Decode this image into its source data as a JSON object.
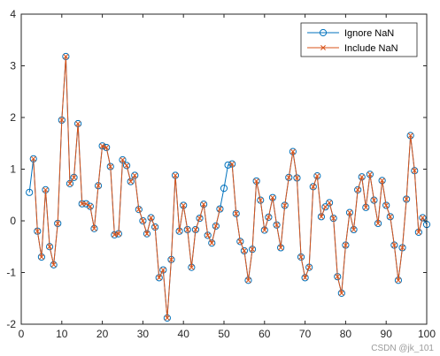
{
  "chart_data": {
    "type": "line",
    "xlim": [
      0,
      100
    ],
    "ylim": [
      -2,
      4
    ],
    "x_ticks": [
      0,
      10,
      20,
      30,
      40,
      50,
      60,
      70,
      80,
      90,
      100
    ],
    "x_tick_labels": [
      "0",
      "10",
      "20",
      "30",
      "40",
      "50",
      "60",
      "70",
      "80",
      "90",
      "100"
    ],
    "y_ticks": [
      -2,
      -1,
      0,
      1,
      2,
      3,
      4
    ],
    "y_tick_labels": [
      "-2",
      "-1",
      "0",
      "1",
      "2",
      "3",
      "4"
    ],
    "grid": false,
    "legend_position": "top-right",
    "x": [
      2,
      3,
      4,
      5,
      6,
      7,
      8,
      9,
      10,
      11,
      12,
      13,
      14,
      15,
      16,
      17,
      18,
      19,
      20,
      21,
      22,
      23,
      24,
      25,
      26,
      27,
      28,
      29,
      30,
      31,
      32,
      33,
      34,
      35,
      36,
      37,
      38,
      39,
      40,
      41,
      42,
      43,
      44,
      45,
      46,
      47,
      48,
      49,
      50,
      51,
      52,
      53,
      54,
      55,
      56,
      57,
      58,
      59,
      60,
      61,
      62,
      63,
      64,
      65,
      66,
      67,
      68,
      69,
      70,
      71,
      72,
      73,
      74,
      75,
      76,
      77,
      78,
      79,
      80,
      81,
      82,
      83,
      84,
      85,
      86,
      87,
      88,
      89,
      90,
      91,
      92,
      93,
      94,
      95,
      96,
      97,
      98,
      99,
      100
    ],
    "series": [
      {
        "name": "Ignore NaN",
        "color": "#0072BD",
        "marker": "circle",
        "values": [
          0.55,
          1.2,
          -0.2,
          -0.7,
          0.6,
          -0.5,
          -0.85,
          -0.05,
          1.95,
          3.18,
          0.72,
          0.84,
          1.88,
          0.33,
          0.33,
          0.28,
          -0.15,
          0.68,
          1.45,
          1.42,
          1.05,
          -0.27,
          -0.25,
          1.18,
          1.07,
          0.76,
          0.88,
          0.22,
          0.0,
          -0.25,
          0.06,
          -0.12,
          -1.1,
          -0.95,
          -1.88,
          -0.75,
          0.88,
          -0.2,
          0.3,
          -0.17,
          -0.9,
          -0.17,
          0.05,
          0.32,
          -0.28,
          -0.43,
          -0.1,
          0.23,
          0.63,
          1.08,
          1.1,
          0.14,
          -0.4,
          -0.58,
          -1.15,
          -0.55,
          0.77,
          0.4,
          -0.18,
          0.07,
          0.45,
          -0.08,
          -0.52,
          0.3,
          0.84,
          1.34,
          0.83,
          -0.7,
          -1.1,
          -0.9,
          0.66,
          0.87,
          0.08,
          0.27,
          0.35,
          0.05,
          -1.08,
          -1.4,
          -0.47,
          0.16,
          -0.17,
          0.6,
          0.85,
          0.26,
          0.9,
          0.4,
          -0.05,
          0.78,
          0.3,
          0.08,
          -0.47,
          -1.15,
          -0.52,
          0.42,
          1.65,
          0.97,
          -0.22,
          0.06,
          -0.07
        ]
      },
      {
        "name": "Include NaN",
        "color": "#D95319",
        "marker": "x",
        "values": [
          null,
          1.2,
          -0.2,
          -0.7,
          0.6,
          -0.5,
          -0.85,
          -0.05,
          1.95,
          3.18,
          0.72,
          0.84,
          1.88,
          0.33,
          0.33,
          0.28,
          -0.15,
          0.68,
          1.45,
          1.42,
          1.05,
          -0.27,
          -0.25,
          1.18,
          1.07,
          0.76,
          0.88,
          0.22,
          0.0,
          -0.25,
          0.06,
          -0.12,
          -1.1,
          -0.95,
          -1.88,
          -0.75,
          0.88,
          -0.2,
          0.3,
          -0.17,
          -0.9,
          -0.17,
          0.05,
          0.32,
          -0.28,
          -0.43,
          -0.1,
          0.23,
          null,
          null,
          1.1,
          0.14,
          -0.4,
          -0.58,
          -1.15,
          -0.55,
          0.77,
          0.4,
          -0.18,
          0.07,
          0.45,
          -0.08,
          -0.52,
          0.3,
          0.84,
          1.34,
          0.83,
          -0.7,
          -1.1,
          -0.9,
          0.66,
          0.87,
          0.08,
          0.27,
          0.35,
          0.05,
          -1.08,
          -1.4,
          -0.47,
          0.16,
          -0.17,
          0.6,
          0.85,
          0.26,
          0.9,
          0.4,
          -0.05,
          0.78,
          0.3,
          0.08,
          -0.47,
          -1.15,
          -0.52,
          0.42,
          1.65,
          0.97,
          -0.22,
          0.06,
          null
        ]
      }
    ]
  },
  "watermark": "CSDN @jk_101"
}
